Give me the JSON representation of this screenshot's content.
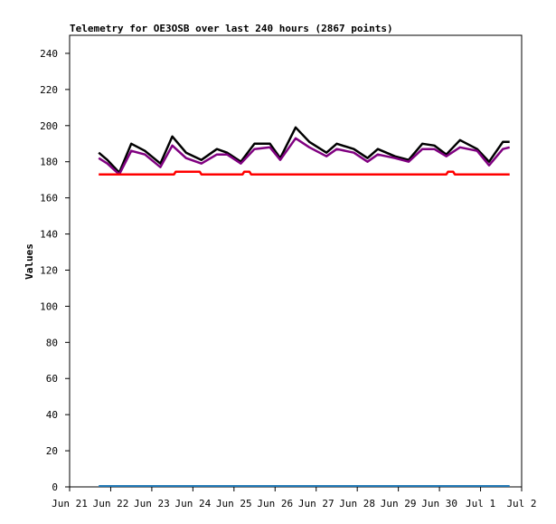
{
  "chart_data": {
    "type": "line",
    "title": "Telemetry for OE3OSB over last 240 hours (2867 points)",
    "xlabel": "",
    "ylabel": "Values",
    "ylim": [
      0,
      250
    ],
    "yticks": [
      0,
      20,
      40,
      60,
      80,
      100,
      120,
      140,
      160,
      180,
      200,
      220,
      240
    ],
    "xlim": [
      "2024-06-21",
      "2024-07-02"
    ],
    "xtick_labels": [
      "Jun 21",
      "Jun 22",
      "Jun 23",
      "Jun 24",
      "Jun 25",
      "Jun 26",
      "Jun 27",
      "Jun 28",
      "Jun 29",
      "Jun 30",
      "Jul 1",
      "Jul 2"
    ],
    "grid": false,
    "legend": "none",
    "series": [
      {
        "color": "#000000",
        "x": [
          "2024-06-21T17:00",
          "2024-06-21T22:00",
          "2024-06-22T05:00",
          "2024-06-22T12:00",
          "2024-06-22T20:00",
          "2024-06-23T05:00",
          "2024-06-23T12:00",
          "2024-06-23T20:00",
          "2024-06-24T05:00",
          "2024-06-24T14:00",
          "2024-06-24T20:00",
          "2024-06-25T04:00",
          "2024-06-25T12:00",
          "2024-06-25T21:00",
          "2024-06-26T03:00",
          "2024-06-26T12:00",
          "2024-06-26T20:00",
          "2024-06-27T06:00",
          "2024-06-27T12:00",
          "2024-06-27T22:00",
          "2024-06-28T06:00",
          "2024-06-28T12:00",
          "2024-06-28T22:00",
          "2024-06-29T06:00",
          "2024-06-29T14:00",
          "2024-06-29T21:00",
          "2024-06-30T04:00",
          "2024-06-30T12:00",
          "2024-06-30T22:00",
          "2024-07-01T05:00",
          "2024-07-01T13:00",
          "2024-07-01T17:00"
        ],
        "y": [
          185,
          181,
          174,
          190,
          186,
          179,
          194,
          185,
          181,
          187,
          185,
          180,
          190,
          190,
          182,
          199,
          191,
          185,
          190,
          187,
          182,
          187,
          183,
          181,
          190,
          189,
          184,
          192,
          187,
          180,
          191,
          191
        ]
      },
      {
        "color": "#800080",
        "x": [
          "2024-06-21T17:00",
          "2024-06-21T22:00",
          "2024-06-22T05:00",
          "2024-06-22T12:00",
          "2024-06-22T20:00",
          "2024-06-23T05:00",
          "2024-06-23T12:00",
          "2024-06-23T20:00",
          "2024-06-24T05:00",
          "2024-06-24T14:00",
          "2024-06-24T20:00",
          "2024-06-25T04:00",
          "2024-06-25T12:00",
          "2024-06-25T21:00",
          "2024-06-26T03:00",
          "2024-06-26T12:00",
          "2024-06-26T20:00",
          "2024-06-27T06:00",
          "2024-06-27T12:00",
          "2024-06-27T22:00",
          "2024-06-28T06:00",
          "2024-06-28T12:00",
          "2024-06-28T22:00",
          "2024-06-29T06:00",
          "2024-06-29T14:00",
          "2024-06-29T21:00",
          "2024-06-30T04:00",
          "2024-06-30T12:00",
          "2024-06-30T22:00",
          "2024-07-01T05:00",
          "2024-07-01T13:00",
          "2024-07-01T17:00"
        ],
        "y": [
          182,
          179,
          173,
          186,
          184,
          177,
          189,
          182,
          179,
          184,
          184,
          179,
          187,
          188,
          181,
          193,
          188,
          183,
          187,
          185,
          180,
          184,
          182,
          180,
          187,
          187,
          183,
          188,
          186,
          178,
          187,
          188
        ]
      },
      {
        "color": "#ff0000",
        "x": [
          "2024-06-21T17:00",
          "2024-06-23T13:00",
          "2024-06-23T14:00",
          "2024-06-24T04:00",
          "2024-06-24T05:00",
          "2024-06-25T05:00",
          "2024-06-25T06:00",
          "2024-06-25T09:00",
          "2024-06-25T10:00",
          "2024-06-30T04:00",
          "2024-06-30T05:00",
          "2024-06-30T08:00",
          "2024-06-30T09:00",
          "2024-07-01T17:00"
        ],
        "y": [
          173,
          173,
          174.5,
          174.5,
          173,
          173,
          174.5,
          174.5,
          173,
          173,
          174.5,
          174.5,
          173,
          173
        ]
      },
      {
        "color": "#1f77b4",
        "x": [
          "2024-06-21T17:00",
          "2024-07-01T17:00"
        ],
        "y": [
          0.5,
          0.5
        ]
      }
    ]
  }
}
